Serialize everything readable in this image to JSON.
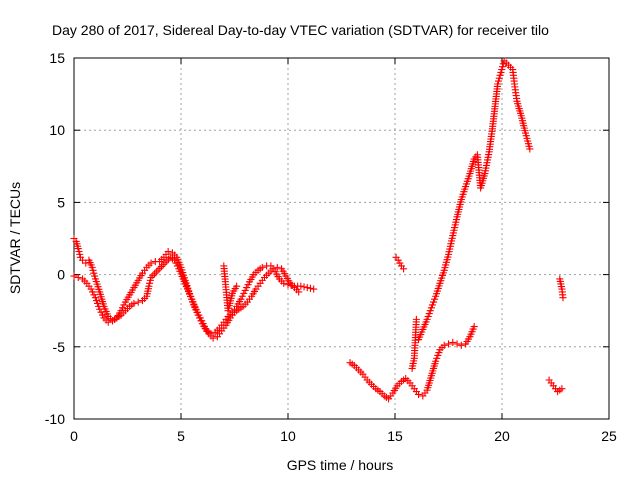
{
  "chart_data": {
    "type": "scatter",
    "title": "Day 280 of 2017, Sidereal Day-to-day VTEC variation (SDTVAR) for receiver tilo",
    "xlabel": "GPS time / hours",
    "ylabel": "SDTVAR / TECUs",
    "xlim": [
      0,
      25
    ],
    "ylim": [
      -10,
      15
    ],
    "xticks": [
      0,
      5,
      10,
      15,
      20,
      25
    ],
    "yticks": [
      -10,
      -5,
      0,
      5,
      10,
      15
    ],
    "xtick_labels": [
      "0",
      "5",
      "10",
      "15",
      "20",
      "25"
    ],
    "ytick_labels": [
      "-10",
      "-5",
      "0",
      "5",
      "10",
      "15"
    ],
    "grid": true,
    "marker": "plus",
    "color": "#ff0000",
    "series": [
      {
        "points": [
          [
            0.0,
            2.5
          ],
          [
            0.1,
            2.3
          ],
          [
            0.2,
            1.8
          ],
          [
            0.3,
            1.2
          ],
          [
            0.4,
            1.0
          ],
          [
            0.55,
            0.8
          ],
          [
            0.7,
            1.0
          ],
          [
            0.85,
            0.5
          ],
          [
            1.0,
            -0.3
          ],
          [
            1.2,
            -1.2
          ],
          [
            1.4,
            -2.2
          ],
          [
            1.6,
            -2.9
          ],
          [
            1.8,
            -3.2
          ],
          [
            2.0,
            -3.0
          ],
          [
            2.2,
            -2.5
          ],
          [
            2.4,
            -1.9
          ],
          [
            2.6,
            -1.4
          ],
          [
            2.8,
            -0.9
          ],
          [
            3.0,
            -0.4
          ],
          [
            3.2,
            0.1
          ],
          [
            3.4,
            0.5
          ],
          [
            3.6,
            0.8
          ],
          [
            3.8,
            0.9
          ],
          [
            4.0,
            0.9
          ],
          [
            4.2,
            1.2
          ],
          [
            4.4,
            1.6
          ],
          [
            4.6,
            1.5
          ],
          [
            4.8,
            1.2
          ],
          [
            5.0,
            0.5
          ],
          [
            5.2,
            -0.4
          ],
          [
            5.4,
            -1.3
          ],
          [
            5.6,
            -2.1
          ],
          [
            5.8,
            -2.8
          ],
          [
            6.0,
            -3.4
          ],
          [
            6.2,
            -3.9
          ],
          [
            6.4,
            -4.1
          ],
          [
            6.6,
            -4.0
          ],
          [
            6.8,
            -3.7
          ],
          [
            7.0,
            -3.3
          ],
          [
            7.2,
            -2.9
          ],
          [
            7.4,
            -2.6
          ],
          [
            7.6,
            -2.2
          ],
          [
            7.8,
            -1.7
          ],
          [
            8.0,
            -1.1
          ],
          [
            8.2,
            -0.5
          ],
          [
            8.4,
            0.0
          ],
          [
            8.6,
            0.3
          ],
          [
            8.8,
            0.5
          ],
          [
            9.0,
            0.6
          ],
          [
            9.2,
            0.6
          ],
          [
            9.4,
            0.2
          ],
          [
            9.6,
            -0.3
          ],
          [
            9.8,
            -0.6
          ],
          [
            10.0,
            -0.7
          ],
          [
            10.3,
            -0.8
          ],
          [
            10.6,
            -0.8
          ],
          [
            10.9,
            -0.9
          ],
          [
            11.2,
            -1.0
          ]
        ]
      },
      {
        "points": [
          [
            0.0,
            -0.1
          ],
          [
            0.2,
            -0.2
          ],
          [
            0.4,
            -0.3
          ],
          [
            0.6,
            -0.6
          ],
          [
            0.8,
            -1.0
          ],
          [
            1.0,
            -1.6
          ],
          [
            1.2,
            -2.4
          ],
          [
            1.4,
            -3.0
          ],
          [
            1.6,
            -3.3
          ],
          [
            1.8,
            -3.2
          ],
          [
            2.0,
            -3.0
          ],
          [
            2.2,
            -2.8
          ],
          [
            2.4,
            -2.5
          ],
          [
            2.6,
            -2.2
          ],
          [
            2.8,
            -2.0
          ],
          [
            3.0,
            -1.9
          ],
          [
            3.2,
            -1.8
          ],
          [
            3.4,
            -1.5
          ],
          [
            3.5,
            -0.8
          ],
          [
            3.6,
            -0.2
          ],
          [
            4.5,
            1.2
          ],
          [
            4.7,
            1.0
          ],
          [
            4.9,
            0.4
          ],
          [
            5.1,
            -0.3
          ],
          [
            5.3,
            -1.0
          ],
          [
            5.5,
            -1.7
          ],
          [
            5.7,
            -2.4
          ],
          [
            5.9,
            -3.0
          ],
          [
            6.1,
            -3.6
          ],
          [
            6.3,
            -4.1
          ],
          [
            6.5,
            -4.4
          ],
          [
            6.7,
            -4.3
          ],
          [
            6.9,
            -3.9
          ],
          [
            7.1,
            -3.5
          ],
          [
            7.3,
            -3.0
          ],
          [
            7.5,
            -2.6
          ],
          [
            7.7,
            -2.4
          ],
          [
            7.9,
            -2.2
          ],
          [
            8.1,
            -1.9
          ],
          [
            8.3,
            -1.5
          ],
          [
            8.5,
            -1.0
          ],
          [
            8.7,
            -0.6
          ],
          [
            8.9,
            -0.2
          ],
          [
            9.1,
            0.1
          ],
          [
            9.3,
            0.4
          ],
          [
            9.5,
            0.5
          ],
          [
            9.7,
            0.4
          ],
          [
            9.9,
            -0.1
          ],
          [
            10.1,
            -0.6
          ],
          [
            10.3,
            -0.9
          ],
          [
            10.5,
            -1.2
          ],
          [
            7.0,
            0.6
          ],
          [
            7.2,
            -2.5
          ],
          [
            7.4,
            -1.3
          ],
          [
            7.6,
            -0.8
          ]
        ]
      },
      {
        "points": [
          [
            12.9,
            -6.1
          ],
          [
            13.1,
            -6.3
          ],
          [
            13.3,
            -6.6
          ],
          [
            13.5,
            -6.9
          ],
          [
            13.7,
            -7.3
          ],
          [
            13.9,
            -7.6
          ],
          [
            14.1,
            -7.9
          ],
          [
            14.3,
            -8.1
          ],
          [
            14.5,
            -8.4
          ],
          [
            14.7,
            -8.6
          ],
          [
            14.9,
            -8.2
          ],
          [
            15.1,
            -7.7
          ],
          [
            15.3,
            -7.4
          ],
          [
            15.5,
            -7.2
          ],
          [
            15.7,
            -7.5
          ],
          [
            15.9,
            -7.9
          ],
          [
            16.1,
            -8.3
          ],
          [
            16.3,
            -8.4
          ],
          [
            16.5,
            -8.0
          ],
          [
            16.7,
            -7.0
          ],
          [
            16.9,
            -6.0
          ],
          [
            17.1,
            -5.2
          ],
          [
            17.3,
            -4.9
          ],
          [
            17.5,
            -4.8
          ],
          [
            17.7,
            -4.7
          ],
          [
            17.9,
            -4.8
          ],
          [
            18.1,
            -4.9
          ],
          [
            18.3,
            -4.8
          ],
          [
            18.5,
            -4.3
          ],
          [
            18.7,
            -3.6
          ],
          [
            15.05,
            1.2
          ],
          [
            15.15,
            1.0
          ],
          [
            15.3,
            0.6
          ],
          [
            15.4,
            0.4
          ],
          [
            15.8,
            -6.5
          ],
          [
            15.9,
            -5.8
          ],
          [
            16.0,
            -3.1
          ]
        ]
      },
      {
        "points": [
          [
            16.1,
            -4.5
          ],
          [
            16.3,
            -3.8
          ],
          [
            16.5,
            -3.1
          ],
          [
            16.7,
            -2.3
          ],
          [
            16.9,
            -1.5
          ],
          [
            17.1,
            -0.6
          ],
          [
            17.3,
            0.3
          ],
          [
            17.5,
            1.4
          ],
          [
            17.7,
            2.7
          ],
          [
            17.9,
            4.0
          ],
          [
            18.1,
            5.2
          ],
          [
            18.3,
            6.1
          ],
          [
            18.5,
            7.0
          ],
          [
            18.7,
            8.0
          ],
          [
            18.85,
            8.3
          ],
          [
            19.0,
            6.0
          ],
          [
            19.2,
            7.0
          ],
          [
            19.4,
            8.5
          ],
          [
            19.55,
            10.1
          ],
          [
            19.8,
            13.2
          ],
          [
            19.95,
            14.0
          ],
          [
            20.1,
            14.8
          ],
          [
            20.3,
            14.5
          ],
          [
            20.5,
            14.2
          ],
          [
            20.6,
            13.0
          ],
          [
            20.7,
            12.0
          ],
          [
            20.9,
            11.0
          ],
          [
            21.1,
            9.8
          ],
          [
            21.3,
            8.7
          ],
          [
            22.2,
            -7.3
          ],
          [
            22.4,
            -7.7
          ],
          [
            22.6,
            -8.1
          ],
          [
            22.8,
            -7.9
          ],
          [
            22.7,
            -0.3
          ],
          [
            22.8,
            -1.0
          ],
          [
            22.85,
            -1.6
          ]
        ]
      }
    ]
  }
}
